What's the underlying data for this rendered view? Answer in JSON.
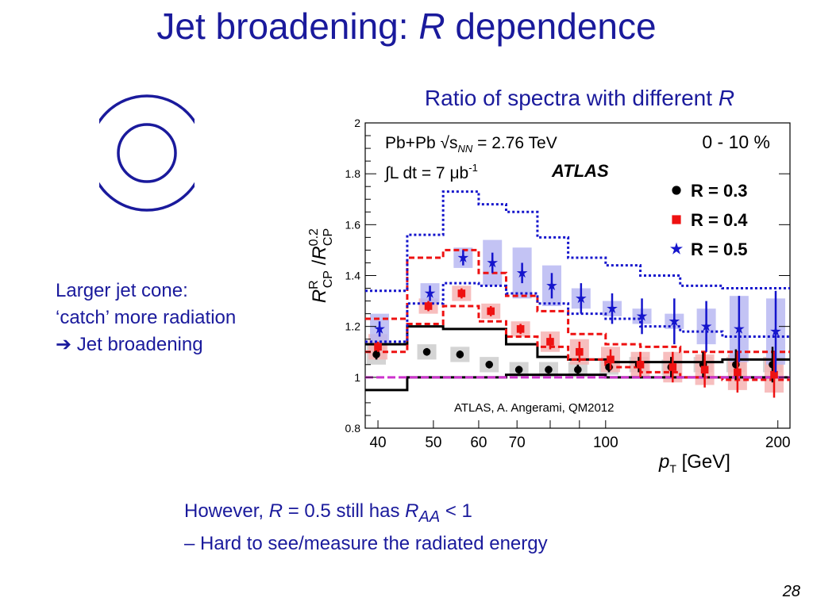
{
  "slide": {
    "title_prefix": "Jet broadening: ",
    "title_var": "R",
    "title_suffix": " dependence",
    "subtitle": "Ratio of spectra with different",
    "subtitle_var": "R",
    "page_number": "28"
  },
  "note": {
    "line1": "Larger jet cone:",
    "line2": "‘catch’ more radiation",
    "line3_arrow": "➔",
    "line3": " Jet broadening"
  },
  "bottom": {
    "line1_a": "However, ",
    "line1_var": "R",
    "line1_b": " = 0.5 still has ",
    "line1_var2": "R",
    "line1_sub": "AA",
    "line1_c": " < 1",
    "line2": "– Hard to see/measure the radiated energy"
  },
  "colors": {
    "slide_text": "#1a1a9c",
    "r03": "#000000",
    "r04": "#ee1111",
    "r05": "#1515cc",
    "r04_box": "#f6b3b3",
    "r05_box": "#b8b8f2",
    "r03_box": "#cccccc",
    "unity_line": "#cc33cc"
  },
  "chart_data": {
    "type": "scatter",
    "ylabel": "R^R_CP / R^0.2_CP",
    "xlabel": "p_T [GeV]",
    "xscale": "log",
    "xlim": [
      38,
      210
    ],
    "ylim": [
      0.8,
      2.0
    ],
    "yticks": [
      "0.8",
      "1",
      "1.2",
      "1.4",
      "1.6",
      "1.8",
      "2"
    ],
    "yticks_values": [
      0.8,
      1.0,
      1.2,
      1.4,
      1.6,
      1.8,
      2.0
    ],
    "xticks": [
      "40",
      "50",
      "60",
      "70",
      "100",
      "200"
    ],
    "xticks_values": [
      40,
      50,
      60,
      70,
      100,
      200
    ],
    "centrality": "0 - 10 %",
    "experiment": "ATLAS",
    "energy_text": "Pb+Pb √s",
    "energy_sub": "NN",
    "energy_value": " = 2.76 TeV",
    "lumi_text": "∫L dt = 7 μb",
    "lumi_exp": "-1",
    "citation": "ATLAS, A. Angerami, QM2012",
    "unity": 1.0,
    "series": [
      {
        "name": "R = 0.3",
        "marker": "circle",
        "color": "#000000",
        "x": [
          40,
          49,
          56,
          63,
          71,
          80,
          90,
          102,
          115,
          131,
          149,
          170,
          197
        ],
        "y": [
          1.09,
          1.1,
          1.09,
          1.05,
          1.03,
          1.03,
          1.03,
          1.04,
          1.05,
          1.04,
          1.05,
          1.05,
          1.05
        ],
        "err": [
          0.02,
          0.015,
          0.015,
          0.015,
          0.015,
          0.015,
          0.02,
          0.02,
          0.03,
          0.04,
          0.05,
          0.06,
          0.07
        ],
        "sys": [
          0.04,
          0.03,
          0.03,
          0.03,
          0.03,
          0.03,
          0.03,
          0.03,
          0.03,
          0.03,
          0.03,
          0.03,
          0.03
        ]
      },
      {
        "name": "R = 0.4",
        "marker": "square",
        "color": "#ee1111",
        "x": [
          40,
          49,
          56,
          63,
          71,
          80,
          90,
          102,
          115,
          131,
          149,
          170,
          197
        ],
        "y": [
          1.12,
          1.28,
          1.33,
          1.26,
          1.19,
          1.14,
          1.1,
          1.07,
          1.05,
          1.04,
          1.03,
          1.02,
          1.01
        ],
        "err": [
          0.02,
          0.02,
          0.02,
          0.02,
          0.02,
          0.03,
          0.04,
          0.04,
          0.05,
          0.06,
          0.07,
          0.08,
          0.09
        ],
        "sys": [
          0.05,
          0.03,
          0.03,
          0.03,
          0.03,
          0.04,
          0.05,
          0.05,
          0.05,
          0.06,
          0.06,
          0.07,
          0.07
        ]
      },
      {
        "name": "R = 0.5",
        "marker": "star",
        "color": "#1515cc",
        "x": [
          40,
          49,
          56,
          63,
          71,
          80,
          90,
          102,
          115,
          131,
          149,
          170,
          197
        ],
        "y": [
          1.19,
          1.33,
          1.47,
          1.45,
          1.41,
          1.36,
          1.31,
          1.27,
          1.24,
          1.22,
          1.2,
          1.19,
          1.18
        ],
        "err": [
          0.03,
          0.03,
          0.03,
          0.04,
          0.04,
          0.05,
          0.06,
          0.06,
          0.07,
          0.09,
          0.1,
          0.13,
          0.16
        ],
        "sys": [
          0.06,
          0.04,
          0.04,
          0.09,
          0.1,
          0.08,
          0.04,
          0.03,
          0.03,
          0.03,
          0.07,
          0.13,
          0.13
        ]
      }
    ],
    "model_curves": [
      {
        "name": "R = 0.3",
        "color": "#000000",
        "style": "solid",
        "edges": [
          38,
          45,
          52,
          60,
          67,
          76,
          86,
          100,
          115,
          135,
          160,
          210
        ],
        "upper": [
          1.13,
          1.2,
          1.19,
          1.19,
          1.13,
          1.08,
          1.07,
          1.06,
          1.06,
          1.06,
          1.07,
          1.07
        ],
        "lower": [
          0.95,
          1.0,
          1.0,
          1.0,
          1.01,
          1.01,
          1.01,
          1.0,
          1.0,
          1.0,
          1.0,
          1.0
        ]
      },
      {
        "name": "R = 0.4",
        "color": "#ee1111",
        "style": "dashed",
        "edges": [
          38,
          45,
          52,
          60,
          67,
          76,
          86,
          100,
          115,
          135,
          160,
          210
        ],
        "upper": [
          1.23,
          1.47,
          1.5,
          1.41,
          1.32,
          1.26,
          1.17,
          1.13,
          1.12,
          1.1,
          1.1,
          1.08
        ],
        "lower": [
          1.1,
          1.21,
          1.28,
          1.22,
          1.16,
          1.12,
          1.07,
          1.04,
          1.02,
          1.0,
          0.99,
          0.97
        ]
      },
      {
        "name": "R = 0.5",
        "color": "#1515cc",
        "style": "dotted",
        "edges": [
          38,
          45,
          52,
          60,
          67,
          76,
          86,
          100,
          115,
          135,
          160,
          210
        ],
        "upper": [
          1.34,
          1.56,
          1.73,
          1.68,
          1.65,
          1.55,
          1.47,
          1.44,
          1.4,
          1.36,
          1.35,
          1.34
        ],
        "lower": [
          1.14,
          1.29,
          1.37,
          1.36,
          1.33,
          1.29,
          1.25,
          1.23,
          1.2,
          1.18,
          1.16,
          1.15
        ]
      }
    ]
  }
}
